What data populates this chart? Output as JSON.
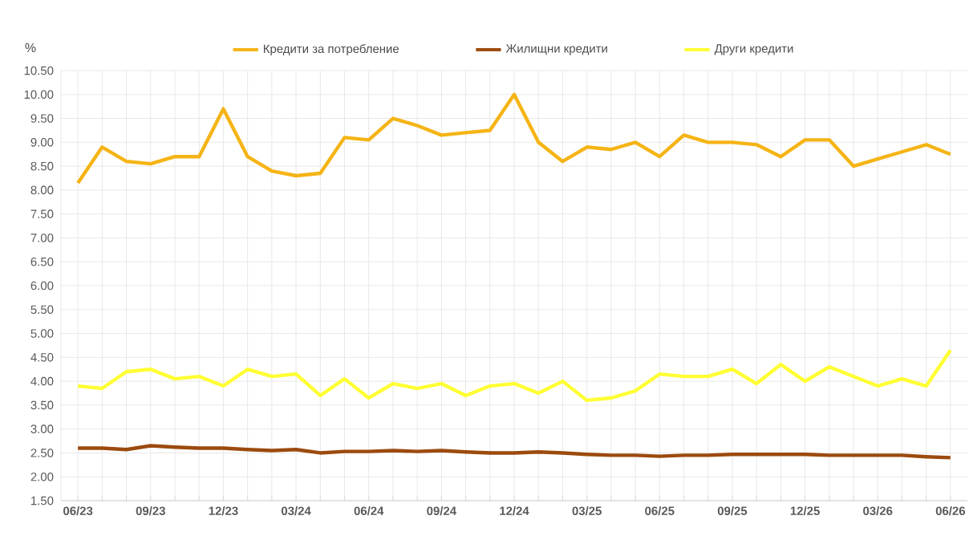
{
  "chart_data": {
    "type": "line",
    "ylabel": "%",
    "categories": [
      "06/23",
      null,
      null,
      "09/23",
      null,
      null,
      "12/23",
      null,
      null,
      "03/24",
      null,
      null,
      "06/24",
      null,
      null,
      "09/24",
      null,
      null,
      "12/24",
      null,
      null,
      "03/25",
      null,
      null,
      "06/25",
      null,
      null,
      "09/25",
      null,
      null,
      "12/25",
      null,
      null,
      "03/26",
      null,
      null,
      "06/26"
    ],
    "series": [
      {
        "name": "Кредити за потребление",
        "color": "#f5b415",
        "values": [
          8.15,
          8.9,
          8.6,
          8.55,
          8.7,
          8.7,
          9.7,
          8.7,
          8.4,
          8.3,
          8.35,
          9.1,
          9.05,
          9.5,
          9.35,
          9.15,
          9.2,
          9.25,
          10.0,
          9.0,
          8.6,
          8.9,
          8.85,
          9.0,
          8.7,
          9.15,
          9.0,
          9.0,
          8.95,
          8.7,
          9.05,
          9.05,
          8.5,
          8.65,
          8.8,
          8.95,
          8.75
        ]
      },
      {
        "name": "Жилищни кредити",
        "color": "#9c4a0e",
        "values": [
          2.6,
          2.6,
          2.57,
          2.65,
          2.62,
          2.6,
          2.6,
          2.57,
          2.55,
          2.57,
          2.5,
          2.53,
          2.53,
          2.55,
          2.53,
          2.55,
          2.52,
          2.5,
          2.5,
          2.52,
          2.5,
          2.47,
          2.45,
          2.45,
          2.43,
          2.45,
          2.45,
          2.47,
          2.47,
          2.47,
          2.47,
          2.45,
          2.45,
          2.45,
          2.45,
          2.42,
          2.4
        ]
      },
      {
        "name": "Други кредити",
        "color": "#ffff33",
        "values": [
          3.9,
          3.85,
          4.2,
          4.25,
          4.05,
          4.1,
          3.9,
          4.25,
          4.1,
          4.15,
          3.7,
          4.05,
          3.65,
          3.95,
          3.85,
          3.95,
          3.7,
          3.9,
          3.95,
          3.75,
          4.0,
          3.6,
          3.65,
          3.8,
          4.15,
          4.1,
          4.1,
          4.25,
          3.95,
          4.35,
          4.0,
          4.3,
          4.1,
          3.9,
          4.05,
          3.9,
          4.65
        ]
      }
    ],
    "ylim": [
      1.5,
      10.5
    ],
    "yticks": [
      {
        "value": 1.5,
        "label": "1.50"
      },
      {
        "value": 2.0,
        "label": "2.00"
      },
      {
        "value": 2.5,
        "label": "2.50"
      },
      {
        "value": 3.0,
        "label": "3.00"
      },
      {
        "value": 3.5,
        "label": "3.50"
      },
      {
        "value": 4.0,
        "label": "4.00"
      },
      {
        "value": 4.5,
        "label": "4.50"
      },
      {
        "value": 5.0,
        "label": "5.00"
      },
      {
        "value": 5.5,
        "label": "5.50"
      },
      {
        "value": 6.0,
        "label": "6.00"
      },
      {
        "value": 6.5,
        "label": "6.50"
      },
      {
        "value": 7.0,
        "label": "7.00"
      },
      {
        "value": 7.5,
        "label": "7.50"
      },
      {
        "value": 8.0,
        "label": "8.00"
      },
      {
        "value": 8.5,
        "label": "8.50"
      },
      {
        "value": 9.0,
        "label": "9.00"
      },
      {
        "value": 9.5,
        "label": "9.50"
      },
      {
        "value": 10.0,
        "label": "10.00"
      },
      {
        "value": 10.5,
        "label": "10.50"
      }
    ],
    "grid": true,
    "legend": "top",
    "marker": "none",
    "line_style": "solid"
  }
}
